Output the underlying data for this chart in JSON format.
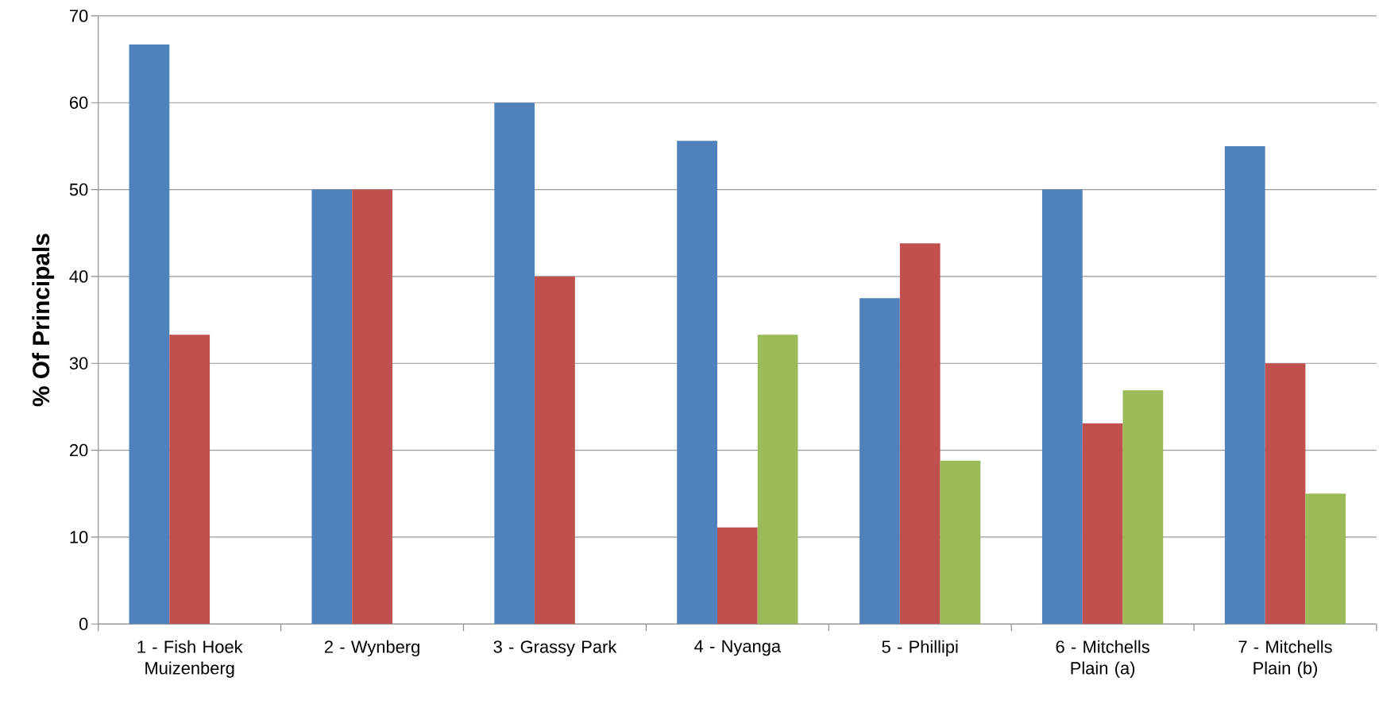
{
  "chart_data": {
    "type": "bar",
    "ylabel": "% Of Principals",
    "categories": [
      "1 - Fish Hoek Muizenberg",
      "2 - Wynberg",
      "3 - Grassy Park",
      "4 - Nyanga",
      "5 - Phillipi",
      "6 - Mitchells Plain (a)",
      "7 - Mitchells Plain (b)"
    ],
    "series": [
      {
        "color": "#4f81bd",
        "values": [
          66.7,
          50,
          60,
          55.6,
          37.5,
          50,
          55
        ]
      },
      {
        "color": "#c0504d",
        "values": [
          33.3,
          50,
          40,
          11.1,
          43.8,
          23.1,
          30
        ]
      },
      {
        "color": "#9bbb59",
        "values": [
          null,
          null,
          null,
          33.3,
          18.8,
          26.9,
          15
        ]
      }
    ],
    "ylim": [
      0,
      70
    ],
    "yticks": [
      0,
      10,
      20,
      30,
      40,
      50,
      60,
      70
    ],
    "grid": "y"
  }
}
